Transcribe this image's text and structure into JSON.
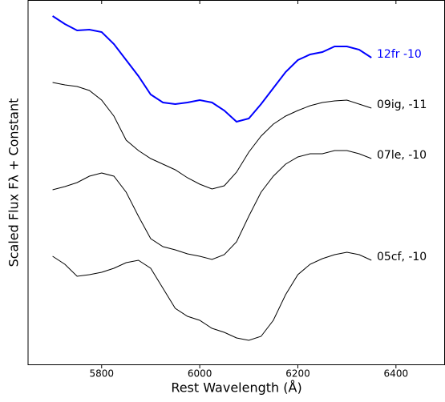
{
  "chart_data": {
    "type": "line",
    "x_label": "Rest Wavelength (Å)",
    "y_label": "Scaled Flux Fλ + Constant",
    "x": [
      5700,
      5725,
      5750,
      5775,
      5800,
      5825,
      5850,
      5875,
      5900,
      5925,
      5950,
      5975,
      6000,
      6025,
      6050,
      6075,
      6100,
      6125,
      6150,
      6175,
      6200,
      6225,
      6250,
      6275,
      6300,
      6325,
      6350
    ],
    "series": [
      {
        "name": "12fr -10",
        "color": "#0000ff",
        "values": [
          435,
          425,
          417,
          418,
          415,
          400,
          380,
          360,
          337,
          327,
          325,
          327,
          330,
          327,
          317,
          303,
          307,
          325,
          345,
          365,
          380,
          387,
          390,
          397,
          397,
          393,
          383
        ]
      },
      {
        "name": "09ig, -11",
        "color": "#000000",
        "values": [
          352,
          349,
          347,
          342,
          330,
          310,
          280,
          267,
          257,
          250,
          243,
          233,
          225,
          219,
          223,
          240,
          265,
          285,
          300,
          310,
          317,
          323,
          327,
          329,
          330,
          325,
          320
        ]
      },
      {
        "name": "07le, -10",
        "color": "#000000",
        "values": [
          218,
          222,
          227,
          235,
          239,
          235,
          215,
          185,
          157,
          147,
          143,
          138,
          135,
          131,
          137,
          153,
          185,
          215,
          235,
          250,
          259,
          263,
          263,
          267,
          267,
          263,
          257
        ]
      },
      {
        "name": "05cf, -10",
        "color": "#000000",
        "values": [
          135,
          125,
          110,
          112,
          115,
          120,
          127,
          130,
          120,
          95,
          70,
          60,
          55,
          45,
          40,
          33,
          30,
          35,
          55,
          87,
          112,
          125,
          132,
          137,
          140,
          137,
          130
        ]
      }
    ],
    "xlim": [
      5650,
      6500
    ],
    "xticks": [
      5800,
      6000,
      6200,
      6400
    ],
    "ylim": [
      0,
      455
    ]
  }
}
